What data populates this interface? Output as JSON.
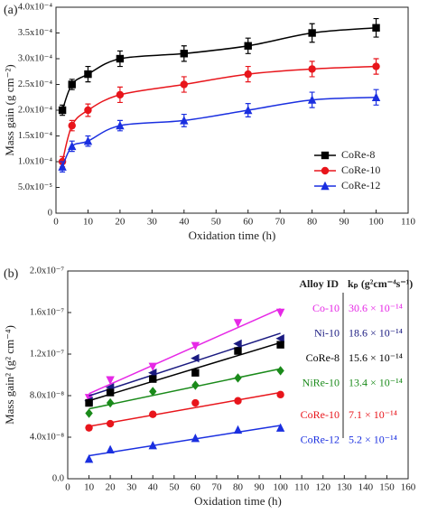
{
  "chart_data": [
    {
      "type": "line",
      "panel_label": "(a)",
      "x_label": "Oxidation time (h)",
      "y_label": "Mass gain (g cm⁻²)",
      "xlim": [
        0,
        110
      ],
      "xticks": [
        0,
        10,
        20,
        30,
        40,
        50,
        60,
        70,
        80,
        90,
        100,
        110
      ],
      "ylim": [
        0,
        0.0004
      ],
      "yticks": [
        0,
        {
          "value": 5e-05,
          "label": "5.0x10⁻⁵"
        },
        {
          "value": 0.0001,
          "label": "1.0x10⁻⁴"
        },
        {
          "value": 0.00015,
          "label": "1.5x10⁻⁴"
        },
        {
          "value": 0.0002,
          "label": "2.0x10⁻⁴"
        },
        {
          "value": 0.00025,
          "label": "2.5x10⁻⁴"
        },
        {
          "value": 0.0003,
          "label": "3.0x10⁻⁴"
        },
        {
          "value": 0.00035,
          "label": "3.5x10⁻⁴"
        },
        {
          "value": 0.0004,
          "label": "4.0x10⁻⁴"
        }
      ],
      "x": [
        2,
        5,
        10,
        20,
        40,
        60,
        80,
        100
      ],
      "series": [
        {
          "name": "CoRe-8",
          "color": "#000000",
          "marker": "square",
          "values": [
            0.0002,
            0.00025,
            0.00027,
            0.0003,
            0.00031,
            0.000325,
            0.00035,
            0.00036
          ],
          "errors": [
            1e-05,
            1e-05,
            1.5e-05,
            1.5e-05,
            1.5e-05,
            1.5e-05,
            1.8e-05,
            1.8e-05
          ]
        },
        {
          "name": "CoRe-10",
          "color": "#e8151b",
          "marker": "circle",
          "values": [
            0.0001,
            0.00017,
            0.0002,
            0.00023,
            0.00025,
            0.00027,
            0.00028,
            0.000285
          ],
          "errors": [
            1e-05,
            1e-05,
            1.2e-05,
            1.5e-05,
            1.5e-05,
            1.5e-05,
            1.5e-05,
            1.5e-05
          ]
        },
        {
          "name": "CoRe-12",
          "color": "#1a2fe0",
          "marker": "triangle",
          "values": [
            9e-05,
            0.00013,
            0.00014,
            0.00017,
            0.00018,
            0.0002,
            0.00022,
            0.000225
          ],
          "errors": [
            1e-05,
            1e-05,
            1e-05,
            1e-05,
            1.2e-05,
            1.3e-05,
            1.5e-05,
            1.5e-05
          ]
        }
      ]
    },
    {
      "type": "scatter",
      "panel_label": "(b)",
      "x_label": "Oxidation time (h)",
      "y_label": "Mass gain² (g² cm⁻⁴)",
      "xlim": [
        0,
        160
      ],
      "xticks": [
        0,
        10,
        20,
        30,
        40,
        50,
        60,
        70,
        80,
        90,
        100,
        110,
        120,
        130,
        140,
        150,
        160
      ],
      "ylim": [
        0,
        2e-07
      ],
      "yticks": [
        {
          "value": 0,
          "label": "0.0"
        },
        {
          "value": 4e-08,
          "label": "4.0x10⁻⁸"
        },
        {
          "value": 8e-08,
          "label": "8.0x10⁻⁸"
        },
        {
          "value": 1.2e-07,
          "label": "1.2x10⁻⁷"
        },
        {
          "value": 1.6e-07,
          "label": "1.6x10⁻⁷"
        },
        {
          "value": 2e-07,
          "label": "2.0x10⁻⁷"
        }
      ],
      "legend_header": [
        "Alloy ID",
        "kₚ (g²cm⁻⁴s⁻¹)"
      ],
      "x": [
        10,
        20,
        40,
        60,
        80,
        100
      ],
      "series": [
        {
          "name": "Co-10",
          "color": "#e628e6",
          "marker": "triangle-down",
          "kp_label": "30.6 × 10⁻¹⁴",
          "values": [
            7.8e-08,
            9.5e-08,
            1.08e-07,
            1.28e-07,
            1.5e-07,
            1.6e-07
          ]
        },
        {
          "name": "Ni-10",
          "color": "#1a1a80",
          "marker": "triangle-left",
          "kp_label": "18.6 × 10⁻¹⁴",
          "values": [
            7.5e-08,
            8.8e-08,
            1.02e-07,
            1.16e-07,
            1.3e-07,
            1.35e-07
          ]
        },
        {
          "name": "CoRe-8",
          "color": "#000000",
          "marker": "square",
          "kp_label": "15.6 × 10⁻¹⁴",
          "values": [
            7.3e-08,
            8.3e-08,
            9.6e-08,
            1.02e-07,
            1.23e-07,
            1.29e-07
          ]
        },
        {
          "name": "NiRe-10",
          "color": "#1a8a1a",
          "marker": "diamond",
          "kp_label": "13.4 × 10⁻¹⁴",
          "values": [
            6.3e-08,
            7.3e-08,
            8.4e-08,
            9e-08,
            9.7e-08,
            1.04e-07
          ]
        },
        {
          "name": "CoRe-10",
          "color": "#e8151b",
          "marker": "circle",
          "kp_label": "7.1 × 10⁻¹⁴",
          "values": [
            4.9e-08,
            5.3e-08,
            6.2e-08,
            7.3e-08,
            7.5e-08,
            8.1e-08
          ]
        },
        {
          "name": "CoRe-12",
          "color": "#1a2fe0",
          "marker": "triangle",
          "kp_label": "5.2 × 10⁻¹⁴",
          "values": [
            1.9e-08,
            2.8e-08,
            3.2e-08,
            3.9e-08,
            4.7e-08,
            4.9e-08
          ]
        }
      ]
    }
  ]
}
